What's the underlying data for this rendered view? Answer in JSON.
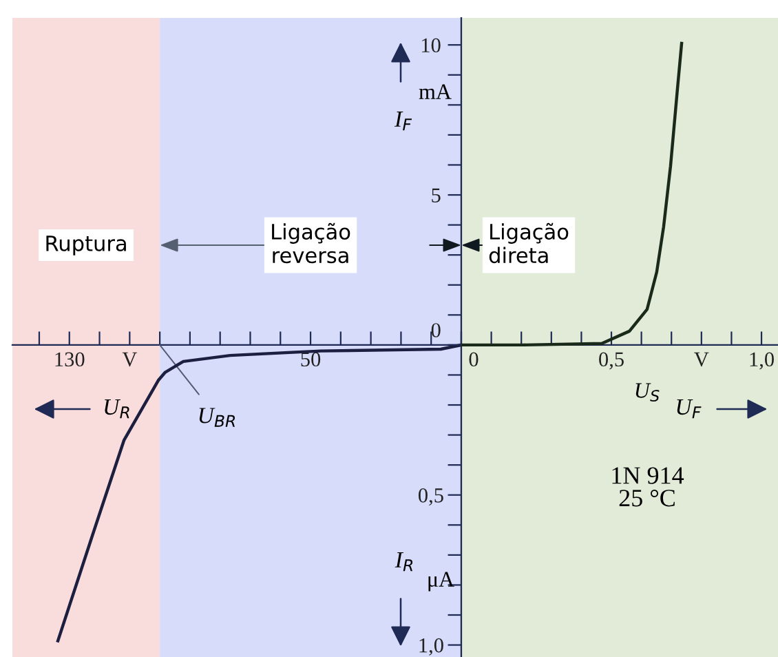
{
  "chart_data": [
    {
      "type": "line",
      "xlim": [
        148.9,
        0
      ],
      "ylim": [
        1.04,
        -1.09
      ],
      "xticks": [
        {
          "value": 0,
          "label": null
        },
        {
          "value": 10,
          "label": null
        },
        {
          "value": 20,
          "label": null
        },
        {
          "value": 30,
          "label": null
        },
        {
          "value": 40,
          "label": null
        },
        {
          "value": 50,
          "label": "50"
        },
        {
          "value": 60,
          "label": null
        },
        {
          "value": 70,
          "label": null
        },
        {
          "value": 80,
          "label": null
        },
        {
          "value": 90,
          "label": null
        },
        {
          "value": 100,
          "label": null
        },
        {
          "value": 110,
          "label": "V"
        },
        {
          "value": 120,
          "label": null
        },
        {
          "value": 130,
          "label": "130"
        },
        {
          "value": 140,
          "label": null
        }
      ],
      "yticks": [
        {
          "value": 0.1,
          "label": null
        },
        {
          "value": 0.2,
          "label": null
        },
        {
          "value": 0.3,
          "label": null
        },
        {
          "value": 0.4,
          "label": null
        },
        {
          "value": 0.5,
          "label": "0,5"
        },
        {
          "value": 0.6,
          "label": null
        },
        {
          "value": 0.7,
          "label": null
        },
        {
          "value": 0.8,
          "label": null
        },
        {
          "value": 0.9,
          "label": null
        },
        {
          "value": 1.0,
          "label": "1,0"
        }
      ],
      "xlabel": "U$_{R}$",
      "ylabel": "I$_{R}$",
      "x": [
        0,
        6.8,
        46.6,
        76.7,
        92.2,
        98.2,
        100.5,
        111.9,
        122.4,
        133.8
      ],
      "series": [
        {
          "color": "#1c1f3f",
          "values": [
            0,
            0.014,
            0.02,
            0.035,
            0.055,
            0.091,
            0.118,
            0.318,
            0.636,
            0.986
          ]
        }
      ],
      "bands": [
        {
          "axis": "x",
          "from": 0,
          "to": 100,
          "label": "Ligação\nreversa",
          "color": "#d6dcfa"
        },
        {
          "axis": "x",
          "from": 100,
          "to": 148.9,
          "label": "Ruptura",
          "color": "#f9dcdc"
        }
      ],
      "annotations": [
        "μA",
        {
          "text": "U$_{BR}$",
          "x": 100,
          "y": 0
        }
      ]
    },
    {
      "type": "line",
      "xlim": [
        0,
        1.055
      ],
      "ylim": [
        -10.4,
        10.9
      ],
      "xticks": [
        {
          "value": 0,
          "label": "0"
        },
        {
          "value": 0.1,
          "label": null
        },
        {
          "value": 0.2,
          "label": null
        },
        {
          "value": 0.3,
          "label": null
        },
        {
          "value": 0.4,
          "label": null
        },
        {
          "value": 0.5,
          "label": "0,5"
        },
        {
          "value": 0.6,
          "label": null
        },
        {
          "value": 0.7,
          "label": null
        },
        {
          "value": 0.8,
          "label": "V"
        },
        {
          "value": 0.9,
          "label": null
        },
        {
          "value": 1.0,
          "label": "1,0"
        }
      ],
      "yticks": [
        {
          "value": 0,
          "label": "0"
        },
        {
          "value": 1,
          "label": null
        },
        {
          "value": 2,
          "label": null
        },
        {
          "value": 3,
          "label": null
        },
        {
          "value": 4,
          "label": null
        },
        5,
        {
          "value": 6,
          "label": null
        },
        {
          "value": 7,
          "label": null
        },
        {
          "value": 8,
          "label": null
        },
        {
          "value": 9,
          "label": null
        },
        10
      ],
      "xlabel": "U$_{F}$",
      "ylabel": "I$_{F}$",
      "x": [
        0,
        0.206,
        0.468,
        0.56,
        0.619,
        0.651,
        0.674,
        0.697,
        0.72,
        0.734
      ],
      "series": [
        {
          "color": "#1a2a1a",
          "values": [
            0,
            0,
            0.05,
            0.46,
            1.19,
            2.43,
            3.94,
            5.96,
            8.53,
            10.05
          ]
        }
      ],
      "bands": [
        {
          "axis": "x",
          "from": 0,
          "to": 1.055,
          "label": "Ligação\ndireta",
          "color": "#e1ebd7"
        }
      ],
      "annotations": [
        "mA",
        "U$_{S}$",
        "1N 914\n25 °C"
      ]
    }
  ]
}
